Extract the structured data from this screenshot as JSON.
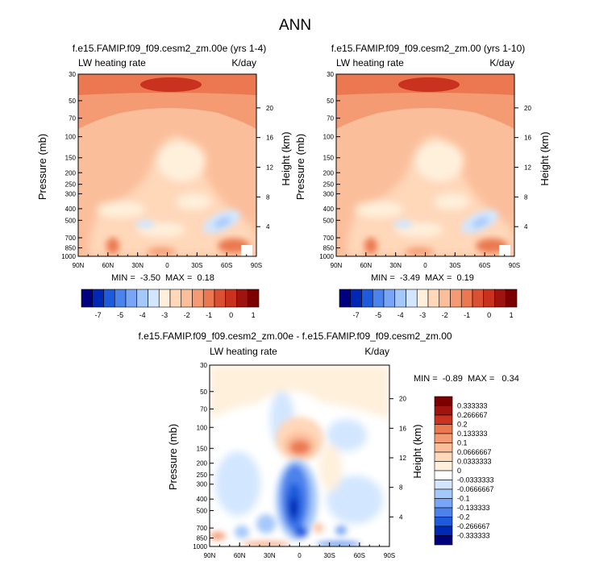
{
  "figure_title": "ANN",
  "colors": {
    "neg_scale": [
      "#00007f",
      "#0028b4",
      "#1e5adc",
      "#4b82eb",
      "#78a5f5",
      "#a5c8fa",
      "#d2e6ff"
    ],
    "pos_scale": [
      "#fff0dc",
      "#ffd7b9",
      "#fbbe9b",
      "#f59b73",
      "#eb7850",
      "#dc5032",
      "#c8321e",
      "#a0140f",
      "#7d0000"
    ],
    "zero": "#ffffff"
  },
  "chart_data": [
    {
      "id": "panel1",
      "type": "heatmap",
      "title": "f.e15.FAMIP.f09_f09.cesm2_zm.00e (yrs 1-4)",
      "left_label": "LW heating rate",
      "right_label": "K/day",
      "ylabel": "Pressure (mb)",
      "ylabel_right": "Height (km)",
      "x_ticks": [
        "90N",
        "60N",
        "30N",
        "0",
        "30S",
        "60S",
        "90S"
      ],
      "xlim": [
        90,
        -90
      ],
      "y_ticks": [
        "30",
        "50",
        "70",
        "100",
        "150",
        "200",
        "250",
        "300",
        "400",
        "500",
        "700",
        "850",
        "1000"
      ],
      "ylim_mb": [
        1000,
        30
      ],
      "height_ticks": [
        "20",
        "16",
        "12",
        "8",
        "4"
      ],
      "min_max": "MIN =  -3.50  MAX =  0.18",
      "colorbar_labels": [
        "-7",
        "-5",
        "-4",
        "-3",
        "-2",
        "-1",
        "0",
        "1"
      ]
    },
    {
      "id": "panel2",
      "type": "heatmap",
      "title": "f.e15.FAMIP.f09_f09.cesm2_zm.00 (yrs 1-10)",
      "left_label": "LW heating rate",
      "right_label": "K/day",
      "ylabel": "Pressure (mb)",
      "ylabel_right": "Height (km)",
      "x_ticks": [
        "90N",
        "60N",
        "30N",
        "0",
        "30S",
        "60S",
        "90S"
      ],
      "xlim": [
        90,
        -90
      ],
      "y_ticks": [
        "30",
        "50",
        "70",
        "100",
        "150",
        "200",
        "250",
        "300",
        "400",
        "500",
        "700",
        "850",
        "1000"
      ],
      "ylim_mb": [
        1000,
        30
      ],
      "height_ticks": [
        "20",
        "16",
        "12",
        "8",
        "4"
      ],
      "min_max": "MIN =  -3.49  MAX =  0.19",
      "colorbar_labels": [
        "-7",
        "-5",
        "-4",
        "-3",
        "-2",
        "-1",
        "0",
        "1"
      ]
    },
    {
      "id": "panel3",
      "type": "heatmap",
      "title": "f.e15.FAMIP.f09_f09.cesm2_zm.00e - f.e15.FAMIP.f09_f09.cesm2_zm.00",
      "left_label": "LW heating rate",
      "right_label": "K/day",
      "ylabel": "Pressure (mb)",
      "ylabel_right": "Height (km)",
      "x_ticks": [
        "90N",
        "60N",
        "30N",
        "0",
        "30S",
        "60S",
        "90S"
      ],
      "xlim": [
        90,
        -90
      ],
      "y_ticks": [
        "30",
        "50",
        "70",
        "100",
        "150",
        "200",
        "250",
        "300",
        "400",
        "500",
        "700",
        "850",
        "1000"
      ],
      "ylim_mb": [
        1000,
        30
      ],
      "height_ticks": [
        "20",
        "16",
        "12",
        "8",
        "4"
      ],
      "min_max": "MIN =  -0.89  MAX =   0.34",
      "colorbar_labels": [
        "0.333333",
        "0.266667",
        "0.2",
        "0.133333",
        "0.1",
        "0.0666667",
        "0.0333333",
        "0",
        "-0.0333333",
        "-0.0666667",
        "-0.1",
        "-0.133333",
        "-0.2",
        "-0.266667",
        "-0.333333"
      ]
    }
  ]
}
